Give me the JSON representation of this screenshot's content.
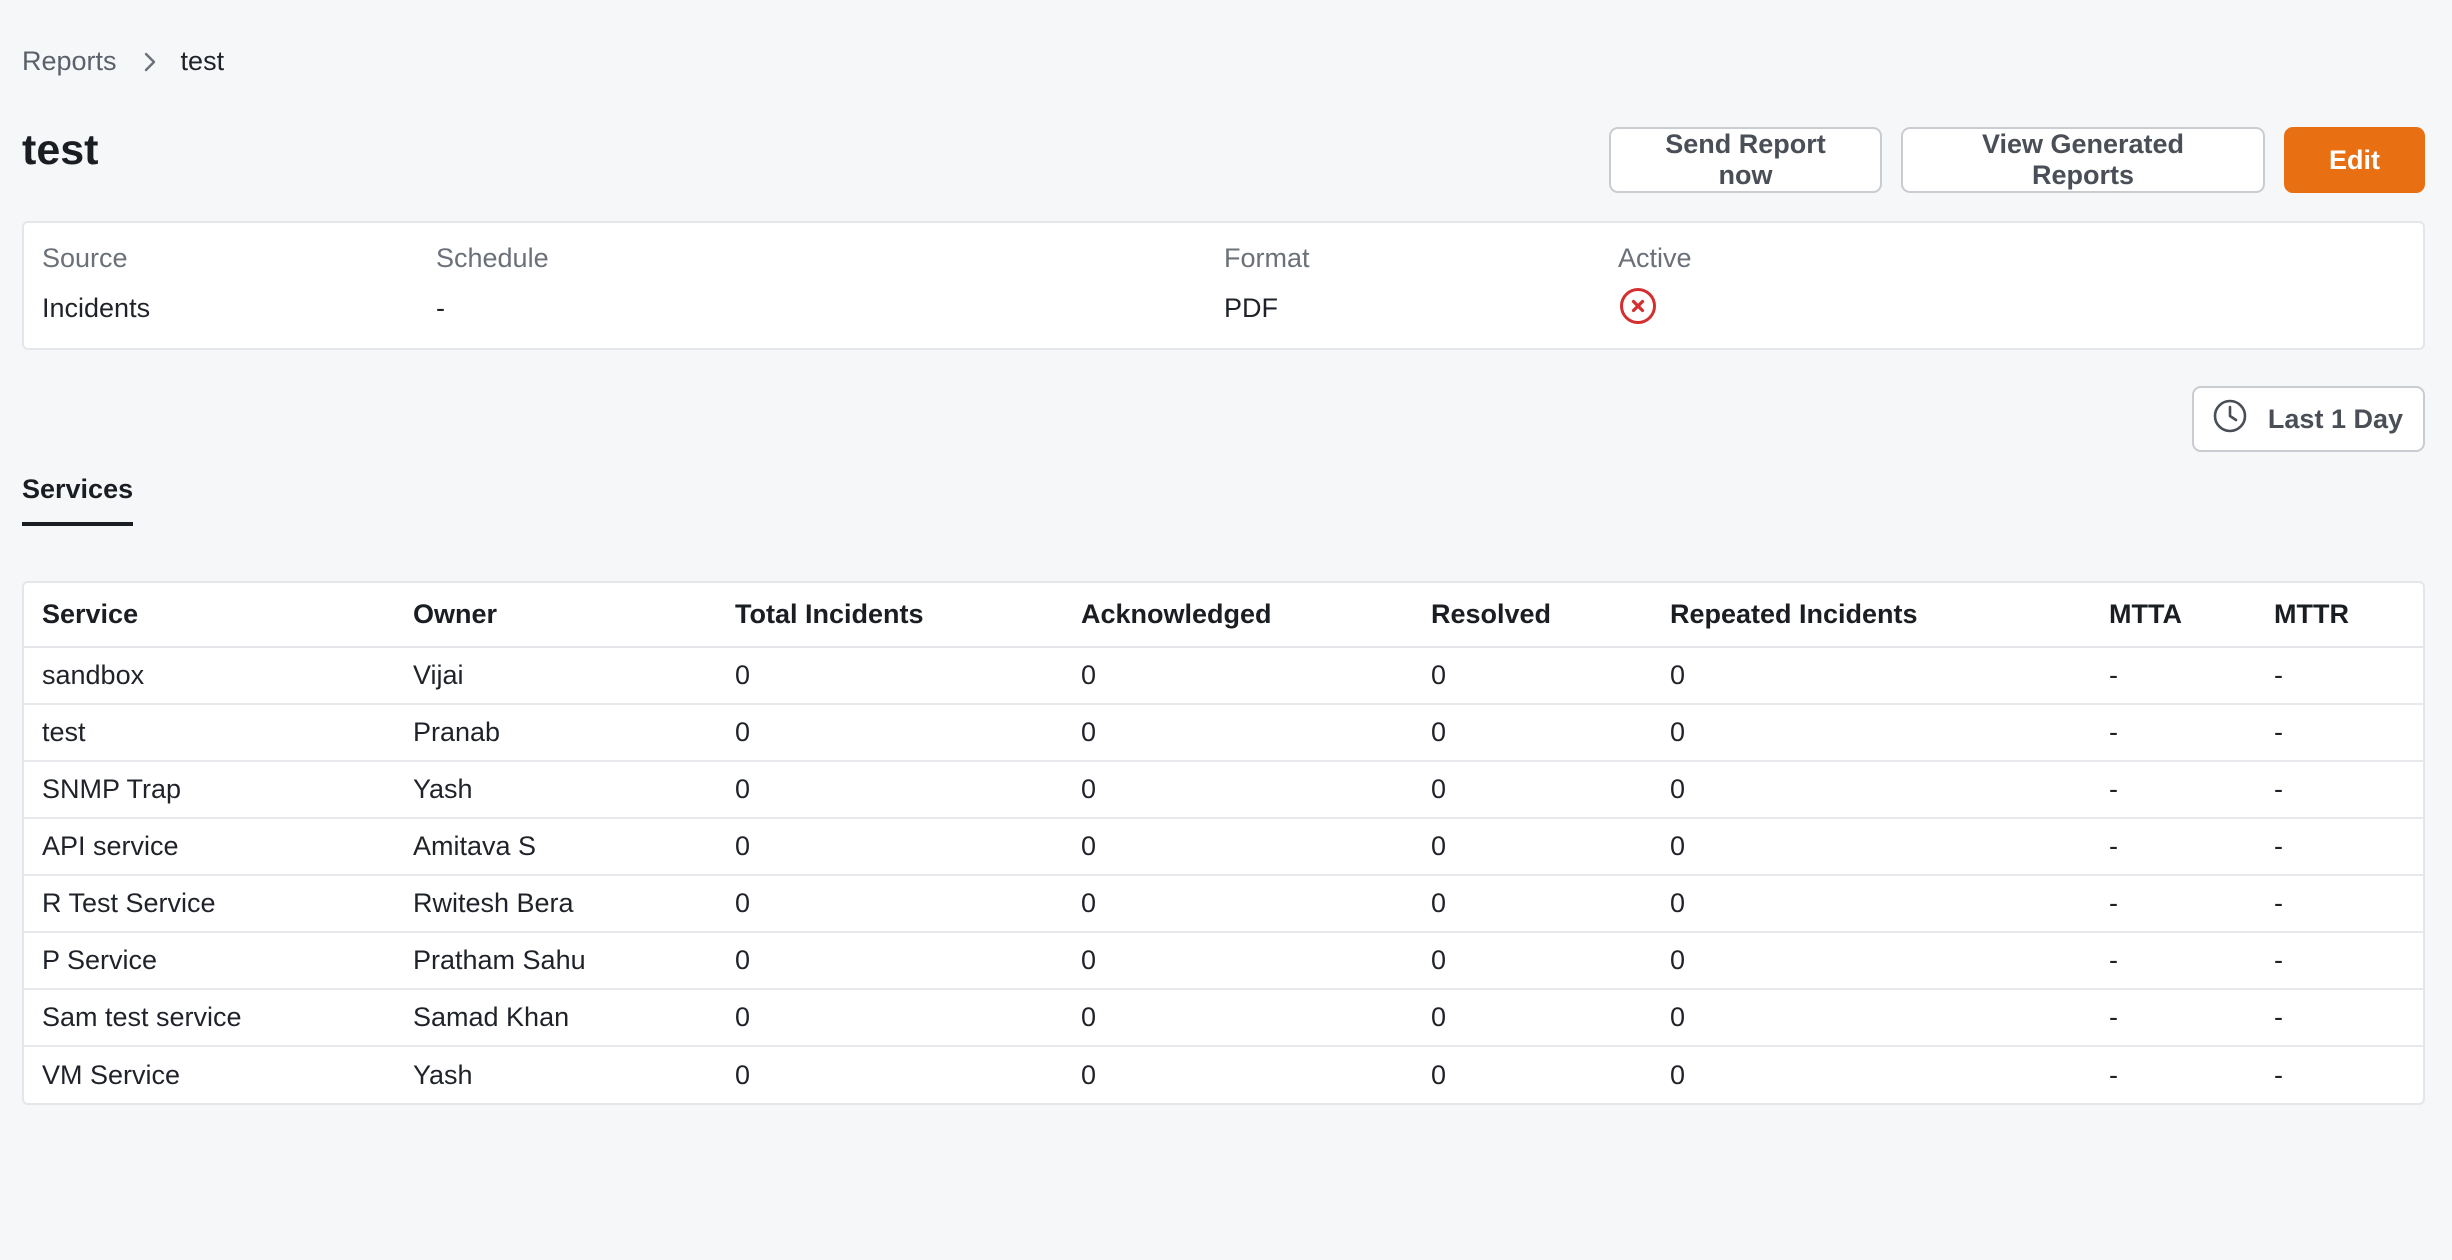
{
  "breadcrumb": {
    "parent": "Reports",
    "current": "test"
  },
  "page": {
    "title": "test"
  },
  "actions": {
    "send_now": "Send Report now",
    "view_generated": "View Generated Reports",
    "edit": "Edit"
  },
  "info": {
    "source": {
      "label": "Source",
      "value": "Incidents"
    },
    "schedule": {
      "label": "Schedule",
      "value": "-"
    },
    "format": {
      "label": "Format",
      "value": "PDF"
    },
    "active": {
      "label": "Active",
      "icon": "x-circle-icon",
      "value": false
    }
  },
  "time_filter": {
    "label": "Last 1 Day",
    "icon": "clock-icon"
  },
  "tabs": [
    {
      "label": "Services",
      "active": true
    }
  ],
  "table": {
    "columns": [
      "Service",
      "Owner",
      "Total Incidents",
      "Acknowledged",
      "Resolved",
      "Repeated Incidents",
      "MTTA",
      "MTTR"
    ],
    "rows": [
      [
        "sandbox",
        "Vijai",
        "0",
        "0",
        "0",
        "0",
        "-",
        "-"
      ],
      [
        "test",
        "Pranab",
        "0",
        "0",
        "0",
        "0",
        "-",
        "-"
      ],
      [
        "SNMP Trap",
        "Yash",
        "0",
        "0",
        "0",
        "0",
        "-",
        "-"
      ],
      [
        "API service",
        "Amitava S",
        "0",
        "0",
        "0",
        "0",
        "-",
        "-"
      ],
      [
        "R Test Service",
        "Rwitesh Bera",
        "0",
        "0",
        "0",
        "0",
        "-",
        "-"
      ],
      [
        "P Service",
        "Pratham Sahu",
        "0",
        "0",
        "0",
        "0",
        "-",
        "-"
      ],
      [
        "Sam test service",
        "Samad Khan",
        "0",
        "0",
        "0",
        "0",
        "-",
        "-"
      ],
      [
        "VM Service",
        "Yash",
        "0",
        "0",
        "0",
        "0",
        "-",
        "-"
      ]
    ]
  },
  "colors": {
    "accent": "#e86f12",
    "inactive": "#d42e2e",
    "background": "#f6f7f9"
  }
}
